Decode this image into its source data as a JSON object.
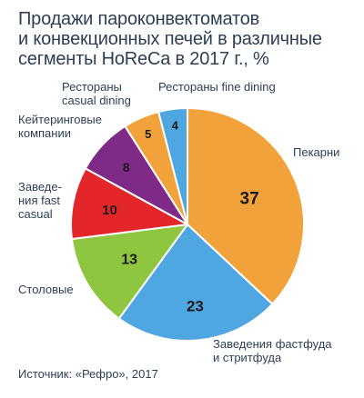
{
  "chart_data": {
    "type": "pie",
    "title_lines": [
      "Продажи пароконвектоматов",
      "и конвекционных печей в различные",
      "сегменты HoReCa в 2017 г., %"
    ],
    "slices": [
      {
        "label": "Пекарни",
        "value": 37,
        "color": "#f2a23a"
      },
      {
        "label": "Заведения фастфуда и стритфуда",
        "value": 23,
        "color": "#4fa7e2"
      },
      {
        "label": "Столовые",
        "value": 13,
        "color": "#8ec63f"
      },
      {
        "label": "Заведе­ния fast casual",
        "value": 10,
        "color": "#e3262a"
      },
      {
        "label": "Кейтеринговые компании",
        "value": 8,
        "color": "#7f2a87"
      },
      {
        "label": "Рестораны casual dining",
        "value": 5,
        "color": "#f2a23a"
      },
      {
        "label": "Рестораны fine dining",
        "value": 4,
        "color": "#4fa7e2"
      }
    ],
    "label_lines": [
      [
        "Пекарни"
      ],
      [
        "Заведения фастфуда",
        "и стритфуда"
      ],
      [
        "Столовые"
      ],
      [
        "Заведе-",
        "ния fast",
        "casual"
      ],
      [
        "Кейтеринговые",
        "компании"
      ],
      [
        "Рестораны",
        "casual dining"
      ],
      [
        "Рестораны fine dining"
      ]
    ],
    "start_angle_deg": 0,
    "direction": "clockwise"
  },
  "source": "Источник: «Рефро», 2017",
  "colors": {
    "text": "#2e3f55",
    "value_text": "#1a1a1a"
  }
}
